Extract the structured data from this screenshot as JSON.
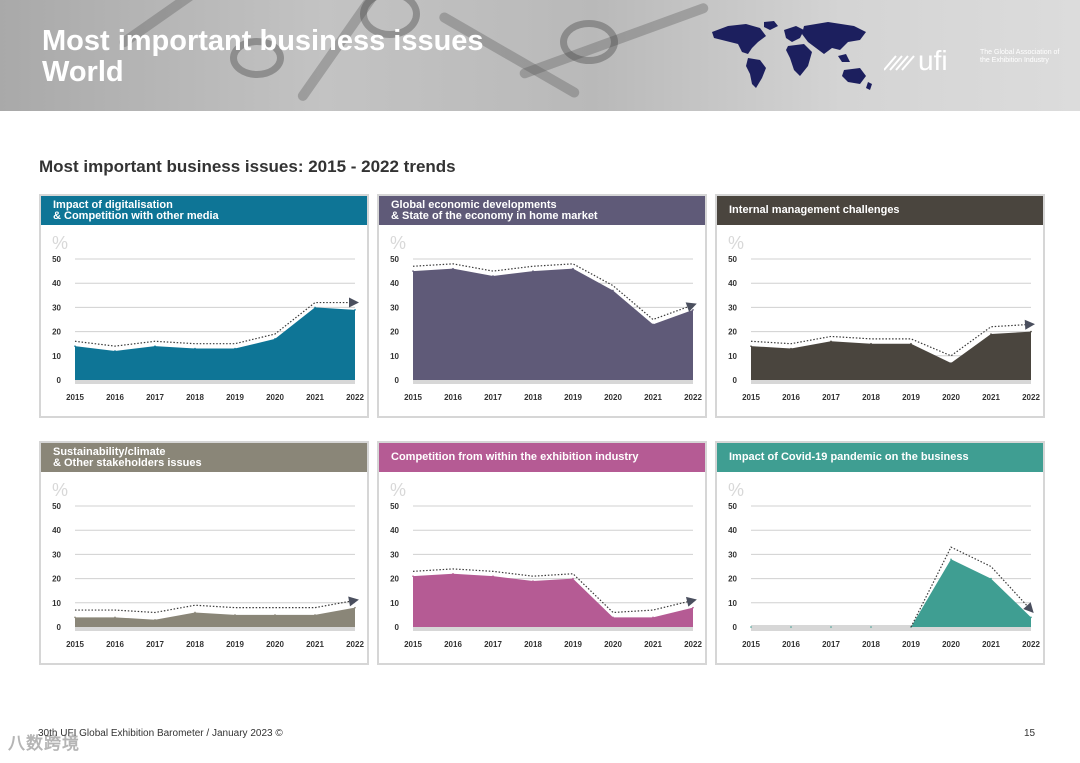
{
  "header": {
    "title_line1": "Most important business issues",
    "title_line2": "World",
    "logo_text": "ufi",
    "logo_tagline": "The Global Association of the Exhibition Industry"
  },
  "section_title": "Most important business issues: 2015 - 2022 trends",
  "footer": {
    "text": "30th UFI Global Exhibition Barometer / January 2023 ©",
    "page": "15",
    "watermark": "八数跨境"
  },
  "colors": {
    "teal_blue": "#0e7596",
    "slate_purple": "#5f5a78",
    "dark_brown": "#4a453e",
    "warm_gray": "#8a8678",
    "magenta": "#b55b94",
    "green_teal": "#3f9e92"
  },
  "chart_data": [
    {
      "type": "area",
      "title": "Impact of digitalisation & Competition with other media",
      "title_lines": [
        "Impact of digitalisation",
        "& Competition with other media"
      ],
      "color": "#0e7596",
      "unit_label": "%",
      "x": [
        "2015",
        "2016",
        "2017",
        "2018",
        "2019",
        "2020",
        "2021",
        "2022"
      ],
      "values": [
        14,
        12,
        14,
        13,
        13,
        17,
        30,
        29
      ],
      "trend_values": [
        16,
        14,
        16,
        15,
        15,
        19,
        32,
        32
      ],
      "trend_start": 0,
      "yticks": [
        0,
        10,
        20,
        30,
        40,
        50
      ],
      "ylim": [
        0,
        50
      ]
    },
    {
      "type": "area",
      "title": "Global economic developments & State of the economy in home market",
      "title_lines": [
        "Global economic developments",
        "& State of the economy in home market"
      ],
      "color": "#5f5a78",
      "unit_label": "%",
      "x": [
        "2015",
        "2016",
        "2017",
        "2018",
        "2019",
        "2020",
        "2021",
        "2022"
      ],
      "values": [
        45,
        46,
        43,
        45,
        46,
        37,
        23,
        29
      ],
      "trend_values": [
        47,
        48,
        45,
        47,
        48,
        39,
        25,
        31
      ],
      "trend_start": 0,
      "yticks": [
        0,
        10,
        20,
        30,
        40,
        50
      ],
      "ylim": [
        0,
        50
      ]
    },
    {
      "type": "area",
      "title": "Internal management challenges",
      "title_lines": [
        "Internal management challenges"
      ],
      "color": "#4a453e",
      "unit_label": "%",
      "x": [
        "2015",
        "2016",
        "2017",
        "2018",
        "2019",
        "2020",
        "2021",
        "2022"
      ],
      "values": [
        14,
        13,
        16,
        15,
        15,
        7,
        19,
        20
      ],
      "trend_values": [
        16,
        15,
        18,
        17,
        17,
        10,
        22,
        23
      ],
      "trend_start": 0,
      "yticks": [
        0,
        10,
        20,
        30,
        40,
        50
      ],
      "ylim": [
        0,
        50
      ]
    },
    {
      "type": "area",
      "title": "Sustainability/climate & Other stakeholders issues",
      "title_lines": [
        "Sustainability/climate",
        "& Other stakeholders issues"
      ],
      "color": "#8a8678",
      "unit_label": "%",
      "x": [
        "2015",
        "2016",
        "2017",
        "2018",
        "2019",
        "2020",
        "2021",
        "2022"
      ],
      "values": [
        4,
        4,
        3,
        6,
        5,
        5,
        5,
        8
      ],
      "trend_values": [
        7,
        7,
        6,
        9,
        8,
        8,
        8,
        11
      ],
      "trend_start": 0,
      "yticks": [
        0,
        10,
        20,
        30,
        40,
        50
      ],
      "ylim": [
        0,
        50
      ]
    },
    {
      "type": "area",
      "title": "Competition from within the exhibition industry",
      "title_lines": [
        "Competition from within the exhibition industry"
      ],
      "color": "#b55b94",
      "unit_label": "%",
      "x": [
        "2015",
        "2016",
        "2017",
        "2018",
        "2019",
        "2020",
        "2021",
        "2022"
      ],
      "values": [
        21,
        22,
        21,
        19,
        20,
        4,
        4,
        8
      ],
      "trend_values": [
        23,
        24,
        23,
        21,
        22,
        6,
        7,
        11
      ],
      "trend_start": 0,
      "yticks": [
        0,
        10,
        20,
        30,
        40,
        50
      ],
      "ylim": [
        0,
        50
      ]
    },
    {
      "type": "area",
      "title": "Impact of Covid-19 pandemic on the business",
      "title_lines": [
        "Impact of Covid-19 pandemic on the business"
      ],
      "color": "#3f9e92",
      "unit_label": "%",
      "x": [
        "2015",
        "2016",
        "2017",
        "2018",
        "2019",
        "2020",
        "2021",
        "2022"
      ],
      "values": [
        0,
        0,
        0,
        0,
        0,
        28,
        20,
        4
      ],
      "trend_values": [
        0,
        0,
        0,
        0,
        0,
        33,
        25,
        7
      ],
      "trend_start": 4,
      "yticks": [
        0,
        10,
        20,
        30,
        40,
        50
      ],
      "ylim": [
        0,
        50
      ]
    }
  ]
}
